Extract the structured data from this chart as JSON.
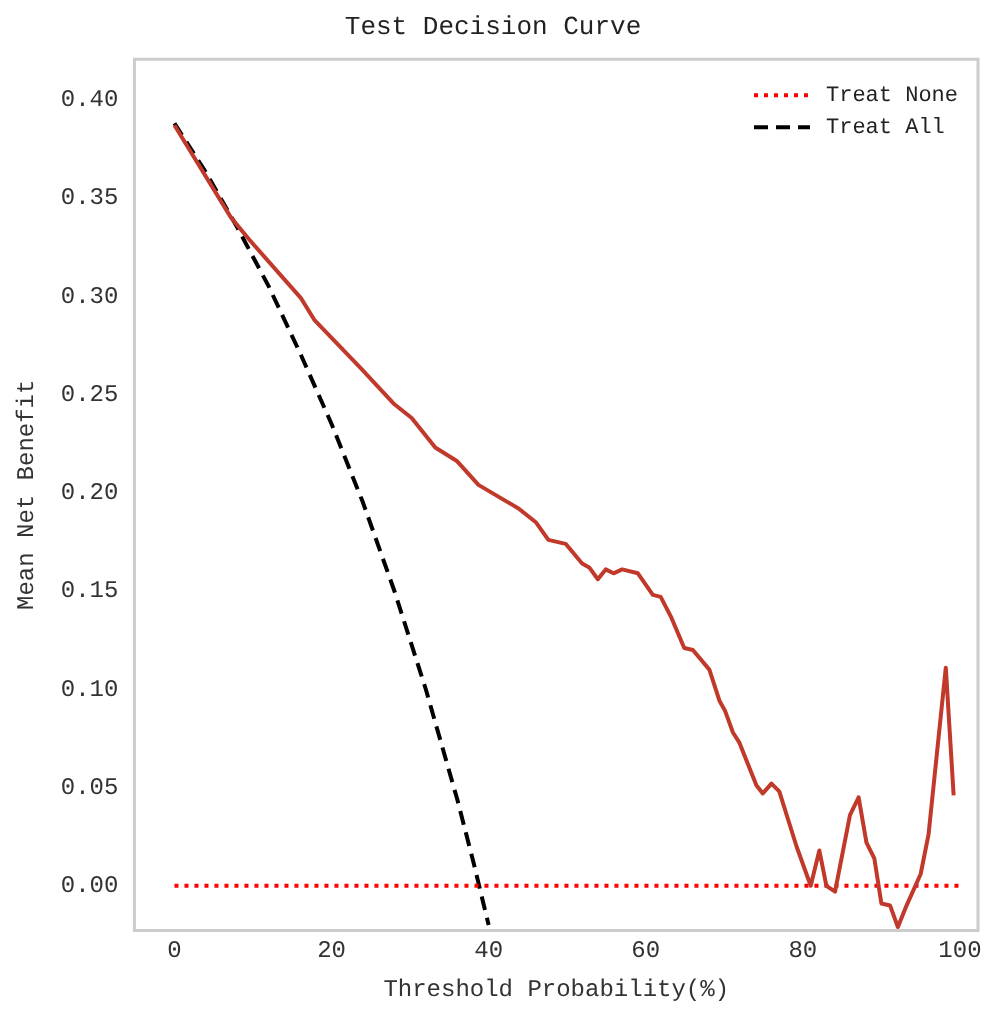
{
  "chart_data": {
    "type": "line",
    "title": "Test Decision Curve",
    "xlabel": "Threshold Probability(%)",
    "ylabel": "Mean Net Benefit",
    "xlim": [
      -5.1,
      102.3
    ],
    "ylim": [
      -0.0227,
      0.4206
    ],
    "xticks": [
      0,
      20,
      40,
      60,
      80,
      100
    ],
    "yticks": [
      {
        "value": 0,
        "label": "0.00"
      },
      {
        "value": 0.05,
        "label": "0.05"
      },
      {
        "value": 0.1,
        "label": "0.10"
      },
      {
        "value": 0.15,
        "label": "0.15"
      },
      {
        "value": 0.2,
        "label": "0.20"
      },
      {
        "value": 0.25,
        "label": "0.25"
      },
      {
        "value": 0.3,
        "label": "0.30"
      },
      {
        "value": 0.35,
        "label": "0.35"
      },
      {
        "value": 0.4,
        "label": "0.40"
      }
    ],
    "grid": false,
    "legend": "top right",
    "marker": "none",
    "series": [
      {
        "color": "#c0392b",
        "line_style": "solid",
        "x": [
          0,
          7.2,
          9.7,
          16.1,
          17.8,
          23.8,
          28,
          30.2,
          33.2,
          36,
          38.7,
          43.8,
          46,
          47.6,
          49.8,
          51.9,
          52.8,
          53.9,
          54.9,
          55.9,
          57,
          59,
          60.9,
          61.9,
          63.2,
          64.9,
          66,
          68.1,
          69.4,
          70.1,
          71.1,
          71.9,
          74.1,
          74.9,
          76,
          77,
          79.2,
          81,
          82.1,
          83,
          84.1,
          86,
          87.1,
          88.1,
          89.1,
          90,
          91.1,
          92.1,
          93.1,
          95,
          96,
          98.2,
          99.2
        ],
        "values": [
          0.387,
          0.34,
          0.328,
          0.299,
          0.288,
          0.263,
          0.245,
          0.238,
          0.223,
          0.216,
          0.204,
          0.192,
          0.185,
          0.176,
          0.174,
          0.164,
          0.162,
          0.156,
          0.161,
          0.159,
          0.161,
          0.159,
          0.148,
          0.147,
          0.137,
          0.121,
          0.12,
          0.11,
          0.094,
          0.089,
          0.078,
          0.073,
          0.051,
          0.047,
          0.052,
          0.048,
          0.02,
          0.0,
          0.018,
          0.0,
          -0.003,
          0.036,
          0.045,
          0.022,
          0.014,
          -0.009,
          -0.01,
          -0.021,
          -0.011,
          0.006,
          0.026,
          0.111,
          0.046
        ]
      },
      {
        "name": "Treat None",
        "color": "#ff0000",
        "line_style": "dotted",
        "x": [
          0,
          100
        ],
        "values": [
          0,
          0
        ]
      },
      {
        "name": "Treat All",
        "color": "#000000",
        "line_style": "dashed",
        "x": [
          0,
          4,
          8,
          12,
          16,
          20,
          24,
          28,
          32,
          36,
          38,
          40
        ],
        "values": [
          0.388,
          0.363,
          0.335,
          0.305,
          0.271,
          0.235,
          0.195,
          0.15,
          0.1,
          0.044,
          0.013,
          -0.02
        ]
      }
    ]
  }
}
